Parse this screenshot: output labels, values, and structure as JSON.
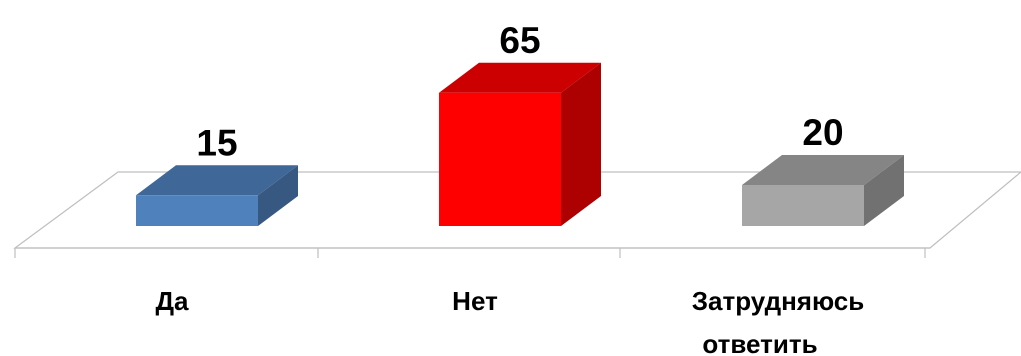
{
  "chart_data": {
    "type": "bar",
    "style": "3d",
    "categories": [
      "Да",
      "Нет",
      "Затрудняюсь ответить"
    ],
    "category_lines": [
      [
        "Да"
      ],
      [
        "Нет"
      ],
      [
        "Затрудняюсь",
        "ответить"
      ]
    ],
    "values": [
      15,
      65,
      20
    ],
    "value_labels": [
      "15",
      "65",
      "20"
    ],
    "colors": [
      "#4f81bd",
      "#ff0000",
      "#a6a6a6"
    ],
    "ylim": [
      0,
      70
    ],
    "grid": false,
    "legend": "none"
  }
}
